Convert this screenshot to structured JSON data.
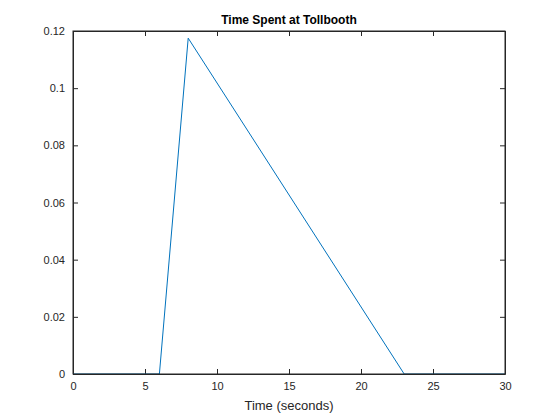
{
  "chart_data": {
    "type": "line",
    "title": "Time Spent at Tollbooth",
    "x_label": "Time (seconds)",
    "x": [
      0,
      6,
      8,
      23,
      30
    ],
    "values": [
      0,
      0,
      0.1175,
      0,
      0
    ],
    "color": "#0072bd",
    "xlim": [
      0,
      30
    ],
    "xticks": [
      0,
      5,
      10,
      15,
      20,
      25,
      30
    ],
    "ylim": [
      0,
      0.12
    ],
    "yticks": [
      0,
      0.02,
      0.04,
      0.06,
      0.08,
      0.1,
      0.12
    ],
    "grid": false
  }
}
